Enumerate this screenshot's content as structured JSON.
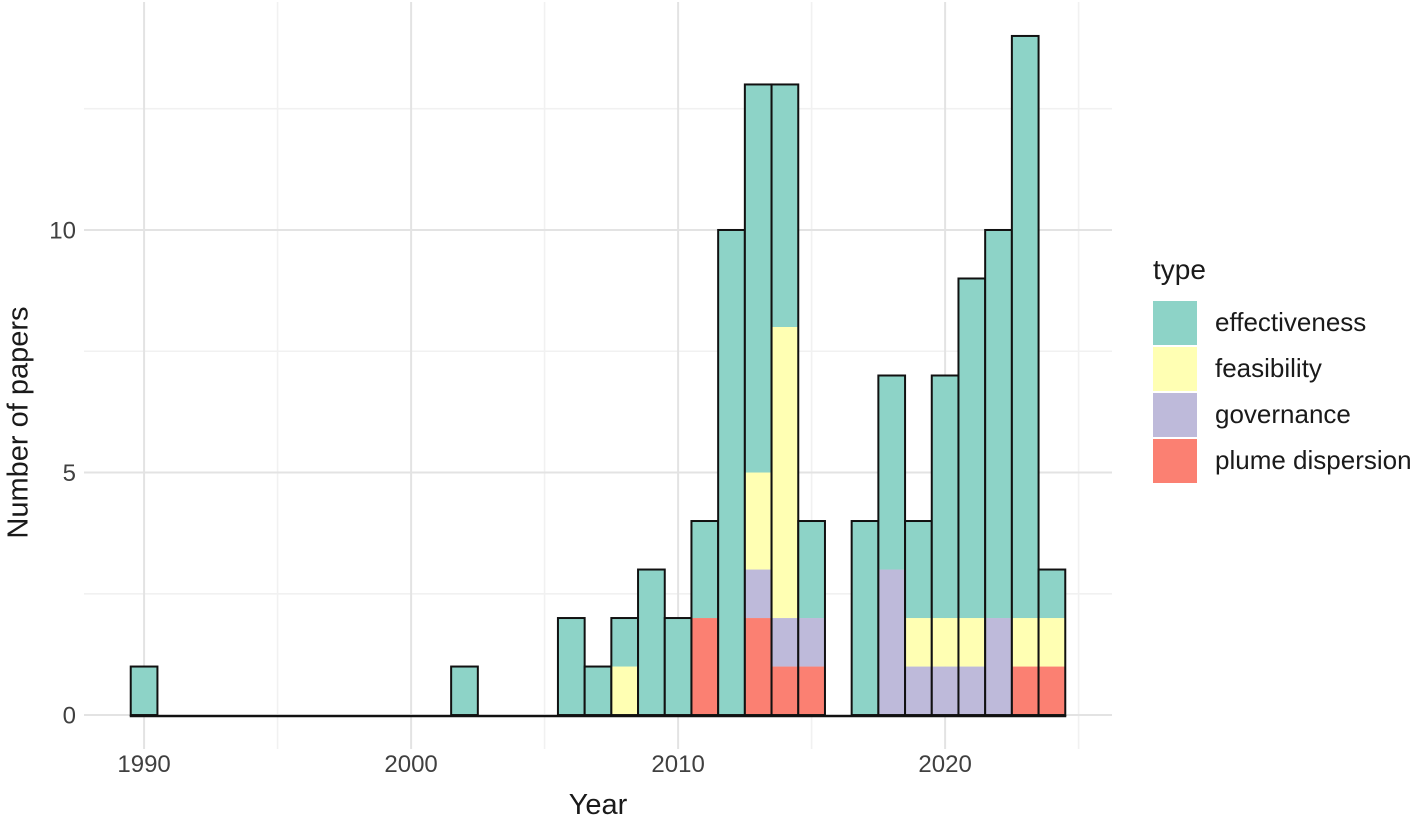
{
  "figure": {
    "background": "#ffffff"
  },
  "chart_data": {
    "type": "bar",
    "stacked": true,
    "title": "",
    "xlabel": "Year",
    "ylabel": "Number of papers",
    "x": [
      1990,
      2002,
      2006,
      2007,
      2008,
      2009,
      2010,
      2011,
      2012,
      2013,
      2014,
      2015,
      2017,
      2018,
      2019,
      2020,
      2021,
      2022,
      2023,
      2024
    ],
    "series": [
      {
        "name": "plume dispersion",
        "color": "#FB8072",
        "values": [
          0,
          0,
          0,
          0,
          0,
          0,
          0,
          2,
          0,
          2,
          1,
          1,
          0,
          0,
          0,
          0,
          0,
          0,
          1,
          1
        ]
      },
      {
        "name": "governance",
        "color": "#BEBADA",
        "values": [
          0,
          0,
          0,
          0,
          0,
          0,
          0,
          0,
          0,
          1,
          1,
          1,
          0,
          3,
          1,
          1,
          1,
          2,
          0,
          0
        ]
      },
      {
        "name": "feasibility",
        "color": "#FFFFB3",
        "values": [
          0,
          0,
          0,
          0,
          1,
          0,
          0,
          0,
          0,
          2,
          6,
          0,
          0,
          0,
          1,
          1,
          1,
          0,
          1,
          1
        ]
      },
      {
        "name": "effectiveness",
        "color": "#8DD3C7",
        "values": [
          1,
          1,
          2,
          1,
          1,
          3,
          2,
          2,
          10,
          8,
          5,
          2,
          4,
          4,
          2,
          5,
          7,
          8,
          12,
          1
        ]
      }
    ],
    "totals": [
      1,
      1,
      2,
      1,
      2,
      3,
      2,
      4,
      10,
      13,
      13,
      4,
      4,
      7,
      4,
      7,
      9,
      10,
      14,
      3
    ],
    "bar_width": 1,
    "x_domain": [
      1989.5,
      2024.5
    ],
    "xlim": [
      1987.75,
      2026.25
    ],
    "ylim": [
      -0.7,
      14.7
    ],
    "x_ticks": {
      "major": [
        1990,
        2000,
        2010,
        2020
      ],
      "minor": [
        1995,
        2005,
        2015,
        2025
      ]
    },
    "y_ticks": {
      "major": [
        0,
        5,
        10
      ],
      "minor": [
        2.5,
        7.5,
        12.5
      ]
    },
    "grid": true,
    "legend_position": "right",
    "legend": {
      "title": "type",
      "entries": [
        {
          "label": "effectiveness",
          "color": "#8DD3C7"
        },
        {
          "label": "feasibility",
          "color": "#FFFFB3"
        },
        {
          "label": "governance",
          "color": "#BEBADA"
        },
        {
          "label": "plume dispersion",
          "color": "#FB8072"
        }
      ]
    }
  },
  "axes": {
    "x_tick_labels": [
      "1990",
      "2000",
      "2010",
      "2020"
    ],
    "y_tick_labels": [
      "0",
      "5",
      "10"
    ]
  },
  "styles": {
    "grid_major": "#e3e3e3",
    "grid_minor": "#f1f1f1",
    "axis_text": "#404040",
    "title_text": "#1a1a1a",
    "bar_outline": "#111111",
    "zero_line": "#111111"
  }
}
